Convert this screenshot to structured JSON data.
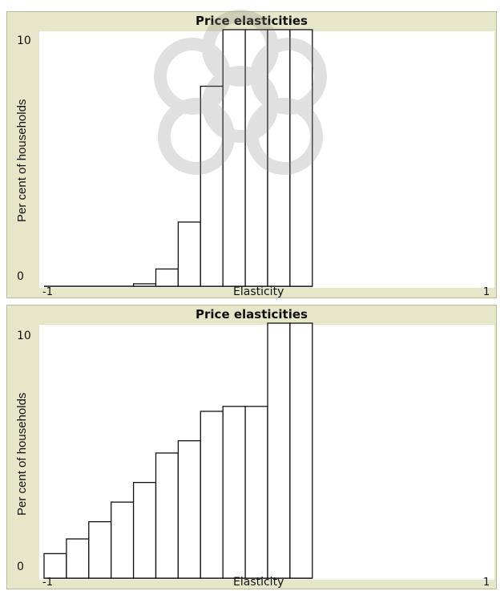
{
  "chart_data": [
    {
      "type": "bar",
      "title": "Price elasticities",
      "xlabel": "Elasticity",
      "ylabel": "Per cent of households",
      "xlim": [
        -1,
        1
      ],
      "ylim": [
        0,
        10
      ],
      "xticks": [
        "-1",
        "1"
      ],
      "yticks": [
        "10",
        "0"
      ],
      "grid": false,
      "bar_color": "#ffffff",
      "edge_color": "#111111",
      "bins": [
        {
          "x0": -1.0,
          "x1": -0.9,
          "value": 0
        },
        {
          "x0": -0.9,
          "x1": -0.8,
          "value": 0
        },
        {
          "x0": -0.8,
          "x1": -0.7,
          "value": 0
        },
        {
          "x0": -0.7,
          "x1": -0.6,
          "value": 0
        },
        {
          "x0": -0.6,
          "x1": -0.5,
          "value": 0.1
        },
        {
          "x0": -0.5,
          "x1": -0.4,
          "value": 0.7
        },
        {
          "x0": -0.4,
          "x1": -0.3,
          "value": 2.6
        },
        {
          "x0": -0.3,
          "x1": -0.2,
          "value": 8.1
        },
        {
          "x0": -0.2,
          "x1": -0.1,
          "value": 10
        },
        {
          "x0": -0.1,
          "x1": 0.0,
          "value": 10
        },
        {
          "x0": 0.0,
          "x1": 0.1,
          "value": 10
        },
        {
          "x0": 0.1,
          "x1": 0.2,
          "value": 10
        }
      ]
    },
    {
      "type": "bar",
      "title": "Price elasticities",
      "xlabel": "Elasticity",
      "ylabel": "Per cent of households",
      "xlim": [
        -1,
        1
      ],
      "ylim": [
        0,
        10
      ],
      "xticks": [
        "-1",
        "1"
      ],
      "yticks": [
        "10",
        "0"
      ],
      "grid": false,
      "bar_color": "#ffffff",
      "edge_color": "#111111",
      "bins": [
        {
          "x0": -1.0,
          "x1": -0.9,
          "value": 1.0
        },
        {
          "x0": -0.9,
          "x1": -0.8,
          "value": 1.6
        },
        {
          "x0": -0.8,
          "x1": -0.7,
          "value": 2.3
        },
        {
          "x0": -0.7,
          "x1": -0.6,
          "value": 3.1
        },
        {
          "x0": -0.6,
          "x1": -0.5,
          "value": 3.9
        },
        {
          "x0": -0.5,
          "x1": -0.4,
          "value": 5.1
        },
        {
          "x0": -0.4,
          "x1": -0.3,
          "value": 5.6
        },
        {
          "x0": -0.3,
          "x1": -0.2,
          "value": 6.8
        },
        {
          "x0": -0.2,
          "x1": -0.1,
          "value": 7.0
        },
        {
          "x0": -0.1,
          "x1": 0.0,
          "value": 7.0
        },
        {
          "x0": 0.0,
          "x1": 0.1,
          "value": 10
        },
        {
          "x0": 0.1,
          "x1": 0.2,
          "value": 10
        }
      ]
    }
  ]
}
